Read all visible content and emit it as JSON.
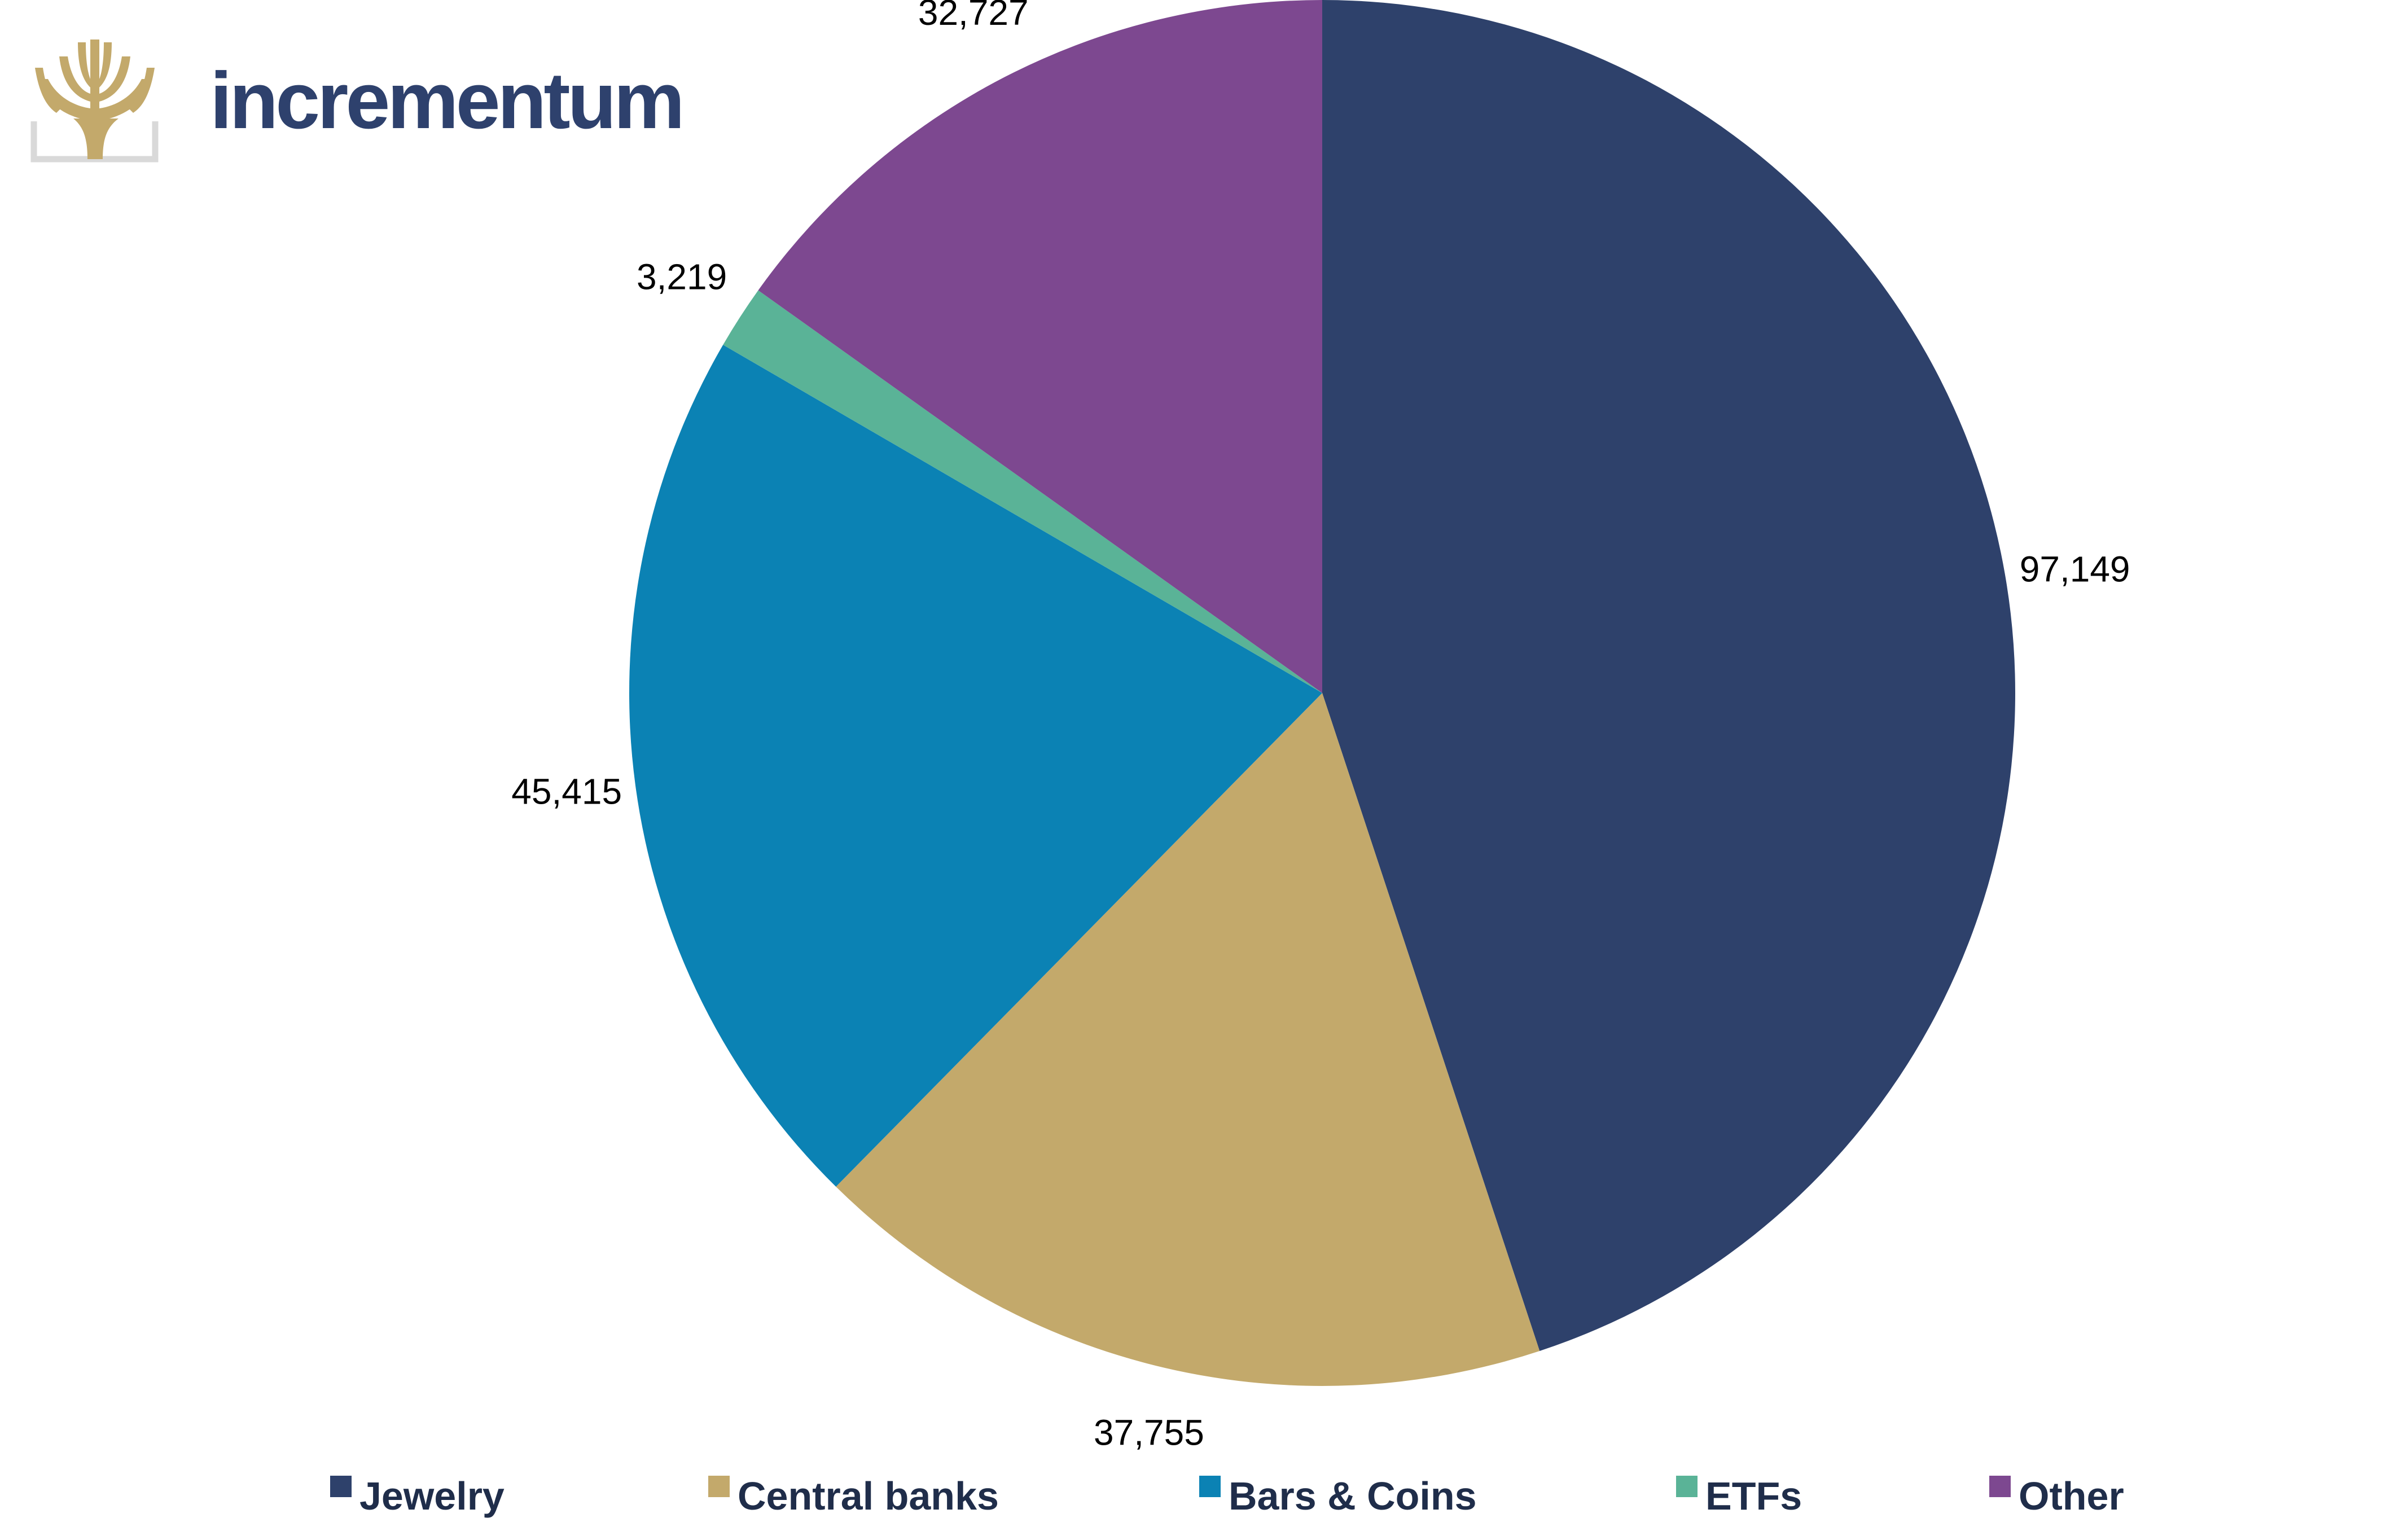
{
  "brand": {
    "name": "incrementum",
    "text_color": "#2e416d",
    "logo_icon": "tree-logo-icon",
    "logo_color": "#c3a96b",
    "logo_frame_color": "#d9d9d9"
  },
  "chart_data": {
    "type": "pie",
    "title": "",
    "start_angle_deg": 0,
    "direction": "clockwise",
    "legend_position": "bottom",
    "data_labels": "outside",
    "slices": [
      {
        "name": "Jewelry",
        "value": 97149,
        "label": "97,149",
        "color": "#2e416b"
      },
      {
        "name": "Central banks",
        "value": 37755,
        "label": "37,755",
        "color": "#c3a96b"
      },
      {
        "name": "Bars & Coins",
        "value": 45415,
        "label": "45,415",
        "color": "#0b82b4"
      },
      {
        "name": "ETFs",
        "value": 3219,
        "label": "3,219",
        "color": "#5ab397"
      },
      {
        "name": "Other",
        "value": 32727,
        "label": "32,727",
        "color": "#7d4890"
      }
    ]
  }
}
